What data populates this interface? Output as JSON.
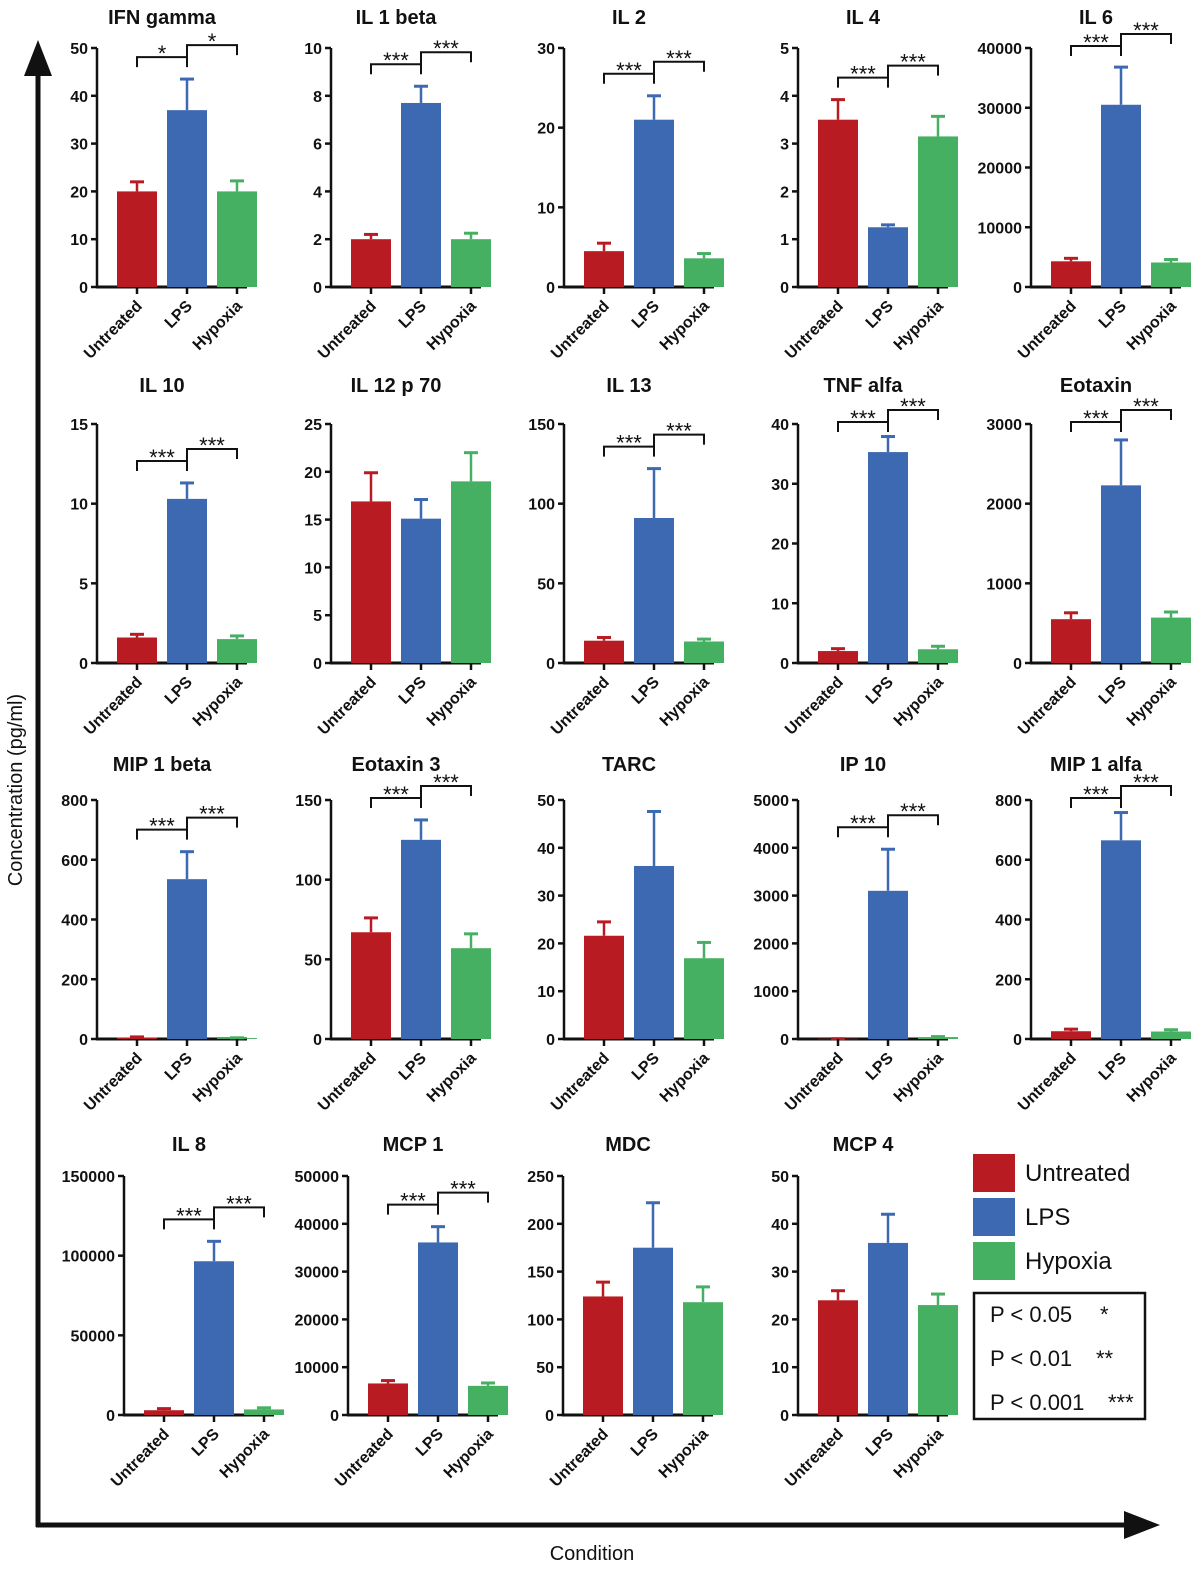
{
  "chart_data": {
    "type": "bar",
    "xlabel": "Condition",
    "ylabel": "Concentration (pg/ml)",
    "categories": [
      "Untreated",
      "LPS",
      "Hypoxia"
    ],
    "colors": {
      "Untreated": "#b81c22",
      "LPS": "#3d69b3",
      "Hypoxia": "#45b061"
    },
    "legend": {
      "placement": "bottom-right",
      "entries": [
        "Untreated",
        "LPS",
        "Hypoxia"
      ],
      "significance": [
        {
          "label": "P < 0.05",
          "marker": "*"
        },
        {
          "label": "P < 0.01",
          "marker": "**"
        },
        {
          "label": "P < 0.001",
          "marker": "***"
        }
      ]
    },
    "panels": [
      {
        "title": "IFN gamma",
        "ylim": [
          0,
          50
        ],
        "yticks": [
          0,
          10,
          20,
          30,
          40,
          50
        ],
        "values": [
          20,
          37,
          20
        ],
        "errors": [
          2,
          6.5,
          2.2
        ],
        "sig": [
          "*",
          "*"
        ]
      },
      {
        "title": "IL 1 beta",
        "ylim": [
          0,
          10
        ],
        "yticks": [
          0,
          2,
          4,
          6,
          8,
          10
        ],
        "values": [
          2.0,
          7.7,
          2.0
        ],
        "errors": [
          0.2,
          0.7,
          0.25
        ],
        "sig": [
          "***",
          "***"
        ]
      },
      {
        "title": "IL 2",
        "ylim": [
          0,
          30
        ],
        "yticks": [
          0,
          10,
          20,
          30
        ],
        "values": [
          4.5,
          21,
          3.6
        ],
        "errors": [
          1,
          3,
          0.6
        ],
        "sig": [
          "***",
          "***"
        ]
      },
      {
        "title": "IL 4",
        "ylim": [
          0,
          5
        ],
        "yticks": [
          0,
          1,
          2,
          3,
          4,
          5
        ],
        "values": [
          3.5,
          1.25,
          3.15
        ],
        "errors": [
          0.42,
          0.05,
          0.42
        ],
        "sig": [
          "***",
          "***"
        ]
      },
      {
        "title": "IL 6",
        "ylim": [
          0,
          40000
        ],
        "yticks": [
          0,
          10000,
          20000,
          30000,
          40000
        ],
        "values": [
          4300,
          30500,
          4100
        ],
        "errors": [
          500,
          6300,
          500
        ],
        "sig": [
          "***",
          "***"
        ]
      },
      {
        "title": "IL 10",
        "ylim": [
          0,
          15
        ],
        "yticks": [
          0,
          5,
          10,
          15
        ],
        "values": [
          1.6,
          10.3,
          1.5
        ],
        "errors": [
          0.2,
          1.0,
          0.2
        ],
        "sig": [
          "***",
          "***"
        ]
      },
      {
        "title": "IL 12 p 70",
        "ylim": [
          0,
          25
        ],
        "yticks": [
          0,
          5,
          10,
          15,
          20,
          25
        ],
        "values": [
          16.9,
          15.1,
          19
        ],
        "errors": [
          3,
          2,
          3
        ],
        "sig": []
      },
      {
        "title": "IL 13",
        "ylim": [
          0,
          150
        ],
        "yticks": [
          0,
          50,
          100,
          150
        ],
        "values": [
          14,
          91,
          13.5
        ],
        "errors": [
          2,
          31,
          1.5
        ],
        "sig": [
          "***",
          "***"
        ]
      },
      {
        "title": "TNF alfa",
        "ylim": [
          0,
          40
        ],
        "yticks": [
          0,
          10,
          20,
          30,
          40
        ],
        "values": [
          2.0,
          35.3,
          2.3
        ],
        "errors": [
          0.4,
          2.6,
          0.5
        ],
        "sig": [
          "***",
          "***"
        ]
      },
      {
        "title": "Eotaxin",
        "ylim": [
          0,
          3000
        ],
        "yticks": [
          0,
          1000,
          2000,
          3000
        ],
        "values": [
          550,
          2230,
          570
        ],
        "errors": [
          80,
          570,
          70
        ],
        "sig": [
          "***",
          "***"
        ]
      },
      {
        "title": "MIP 1 beta",
        "ylim": [
          0,
          800
        ],
        "yticks": [
          0,
          200,
          400,
          600,
          800
        ],
        "values": [
          5,
          535,
          3
        ],
        "errors": [
          2,
          92,
          1
        ],
        "sig": [
          "***",
          "***"
        ]
      },
      {
        "title": "Eotaxin 3",
        "ylim": [
          0,
          150
        ],
        "yticks": [
          0,
          50,
          100,
          150
        ],
        "values": [
          67,
          125,
          57
        ],
        "errors": [
          9,
          12.5,
          9
        ],
        "sig": [
          "***",
          "***"
        ]
      },
      {
        "title": "TARC",
        "ylim": [
          0,
          50
        ],
        "yticks": [
          0,
          10,
          20,
          30,
          40,
          50
        ],
        "values": [
          21.6,
          36.2,
          16.9
        ],
        "errors": [
          2.9,
          11.4,
          3.3
        ],
        "sig": []
      },
      {
        "title": "IP 10",
        "ylim": [
          0,
          5000
        ],
        "yticks": [
          0,
          1000,
          2000,
          3000,
          4000,
          5000
        ],
        "values": [
          5,
          3100,
          40
        ],
        "errors": [
          2,
          870,
          10
        ],
        "sig": [
          "***",
          "***"
        ]
      },
      {
        "title": "MIP 1 alfa",
        "ylim": [
          0,
          800
        ],
        "yticks": [
          0,
          200,
          400,
          600,
          800
        ],
        "values": [
          26,
          665,
          25
        ],
        "errors": [
          7,
          93,
          6
        ],
        "sig": [
          "***",
          "***"
        ]
      },
      {
        "title": "IL 8",
        "ylim": [
          0,
          150000
        ],
        "yticks": [
          0,
          50000,
          100000,
          150000
        ],
        "values": [
          3000,
          96500,
          3500
        ],
        "errors": [
          1000,
          12500,
          1000
        ],
        "sig": [
          "***",
          "***"
        ]
      },
      {
        "title": "MCP 1",
        "ylim": [
          0,
          50000
        ],
        "yticks": [
          0,
          10000,
          20000,
          30000,
          40000,
          50000
        ],
        "values": [
          6600,
          36100,
          6100
        ],
        "errors": [
          600,
          3300,
          600
        ],
        "sig": [
          "***",
          "***"
        ]
      },
      {
        "title": "MDC",
        "ylim": [
          0,
          250
        ],
        "yticks": [
          0,
          50,
          100,
          150,
          200,
          250
        ],
        "values": [
          124,
          175,
          118
        ],
        "errors": [
          15,
          47,
          16
        ],
        "sig": []
      },
      {
        "title": "MCP 4",
        "ylim": [
          0,
          50
        ],
        "yticks": [
          0,
          10,
          20,
          30,
          40,
          50
        ],
        "values": [
          24,
          36,
          23
        ],
        "errors": [
          2,
          6,
          2.3
        ],
        "sig": []
      }
    ]
  }
}
